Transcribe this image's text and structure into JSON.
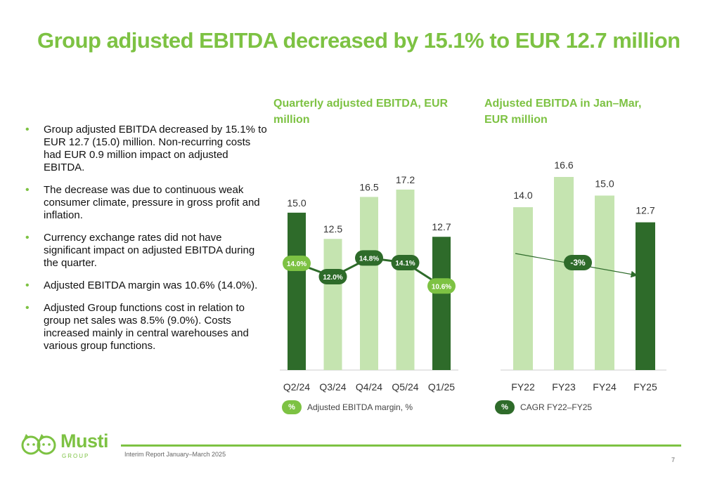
{
  "title": "Group adjusted EBITDA decreased by 15.1% to EUR 12.7 million",
  "bullets": [
    "Group adjusted EBITDA decreased by 15.1% to EUR 12.7 (15.0) million. Non-recurring costs had EUR 0.9 million impact on adjusted EBITDA.",
    "The decrease was due to continuous weak consumer climate, pressure in gross profit and inflation.",
    "Currency exchange rates did not have significant impact on adjusted EBITDA during the quarter.",
    "Adjusted EBITDA margin was 10.6% (14.0%).",
    "Adjusted Group functions cost in relation to group net sales was 8.5% (9.0%). Costs increased mainly in central warehouses and various group functions."
  ],
  "colors": {
    "accent": "#7dc243",
    "dark_bar": "#2e6b2a",
    "light_bar": "#c5e4b0",
    "line": "#2e6b2a"
  },
  "chart_data": [
    {
      "type": "bar",
      "title": "Quarterly adjusted EBITDA, EUR million",
      "categories": [
        "Q2/24",
        "Q3/24",
        "Q4/24",
        "Q5/24",
        "Q1/25"
      ],
      "values": [
        15.0,
        12.5,
        16.5,
        17.2,
        12.7
      ],
      "value_labels": [
        "15.0",
        "12.5",
        "16.5",
        "17.2",
        "12.7"
      ],
      "bar_styles": [
        "dark",
        "light",
        "light",
        "light",
        "dark"
      ],
      "ylim": [
        0,
        17.2
      ],
      "grid": false,
      "overlay_line": {
        "name": "Adjusted EBITDA margin, %",
        "values": [
          14.0,
          12.0,
          14.8,
          14.1,
          10.6
        ],
        "labels": [
          "14.0%",
          "12.0%",
          "14.8%",
          "14.1%",
          "10.6%"
        ],
        "marker_styles": [
          "dark",
          "light",
          "light",
          "light",
          "dark"
        ]
      },
      "legend": {
        "symbol": "%",
        "label": "Adjusted EBITDA margin, %",
        "placement": "bottom-left"
      }
    },
    {
      "type": "bar",
      "title": "Adjusted EBITDA in Jan–Mar, EUR million",
      "categories": [
        "FY22",
        "FY23",
        "FY24",
        "FY25"
      ],
      "values": [
        14.0,
        16.6,
        15.0,
        12.7
      ],
      "value_labels": [
        "14.0",
        "16.6",
        "15.0",
        "12.7"
      ],
      "bar_styles": [
        "light",
        "light",
        "light",
        "dark"
      ],
      "ylim": [
        0,
        16.6
      ],
      "grid": false,
      "cagr": {
        "label": "-3%",
        "from": "FY22",
        "to": "FY25"
      },
      "legend": {
        "symbol": "%",
        "label": "CAGR FY22–FY25",
        "placement": "bottom-left"
      }
    }
  ],
  "footer": {
    "logo_word": "Musti",
    "logo_sub": "GROUP",
    "text": "Interim Report January–March 2025",
    "page": "7"
  }
}
